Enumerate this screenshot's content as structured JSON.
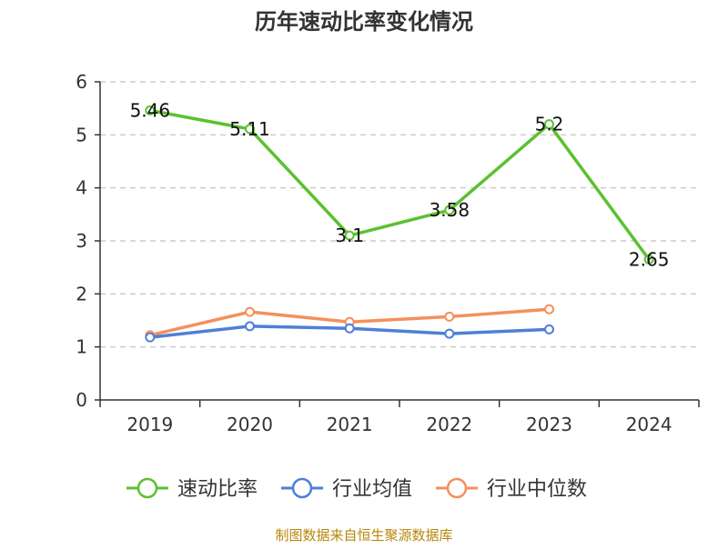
{
  "chart_data": {
    "type": "line",
    "title": "历年速动比率变化情况",
    "categories": [
      "2019",
      "2020",
      "2021",
      "2022",
      "2023",
      "2024"
    ],
    "y_ticks": [
      0,
      1,
      2,
      3,
      4,
      5,
      6
    ],
    "ylim": [
      0,
      6
    ],
    "grid": true,
    "legend_position": "bottom",
    "series": [
      {
        "name": "速动比率",
        "color": "#5BC12F",
        "values": [
          5.46,
          5.11,
          3.1,
          3.58,
          5.2,
          2.65
        ],
        "labels": [
          "5.46",
          "5.11",
          "3.1",
          "3.58",
          "5.2",
          "2.65"
        ],
        "show_labels": true
      },
      {
        "name": "行业均值",
        "color": "#4F7FD6",
        "values": [
          1.18,
          1.39,
          1.35,
          1.25,
          1.33,
          null
        ],
        "show_labels": false
      },
      {
        "name": "行业中位数",
        "color": "#F4905C",
        "values": [
          1.22,
          1.66,
          1.47,
          1.57,
          1.71,
          null
        ],
        "show_labels": false
      }
    ],
    "source": "制图数据来自恒生聚源数据库",
    "source_color": "#B8860B"
  }
}
